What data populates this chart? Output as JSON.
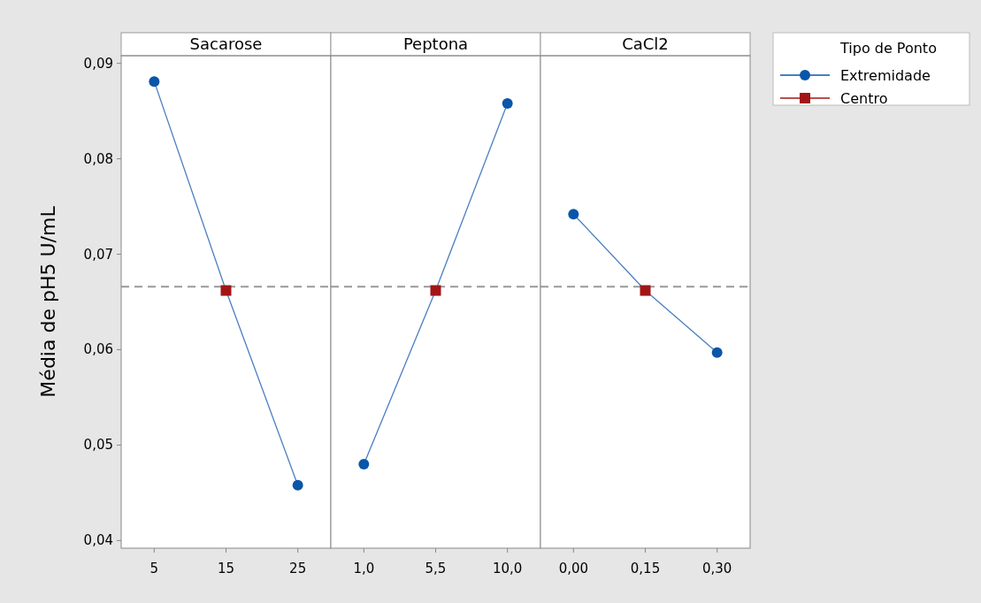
{
  "chart_data": [
    {
      "type": "line",
      "title": "Sacarose",
      "ylabel": "Média de pH5 U/mL",
      "categories": [
        "5",
        "15",
        "25"
      ],
      "ylim": [
        0.0392,
        0.0908
      ],
      "yticks": [
        {
          "value": 0.04,
          "label": "0,04"
        },
        {
          "value": 0.05,
          "label": "0,05"
        },
        {
          "value": 0.06,
          "label": "0,06"
        },
        {
          "value": 0.07,
          "label": "0,07"
        },
        {
          "value": 0.08,
          "label": "0,08"
        },
        {
          "value": 0.09,
          "label": "0,09"
        }
      ],
      "ref_lines": [
        {
          "axis": "y",
          "value": 0.0666,
          "color": "#999999",
          "line_style": "dashed"
        }
      ],
      "series": [
        {
          "type": "line",
          "color": "#4a7fc1",
          "marker": "none",
          "values": [
            0.0881,
            0.0662,
            0.0458
          ]
        },
        {
          "type": "scatter",
          "color": "#0a56a8",
          "marker": "circle",
          "values": [
            0.0881,
            null,
            0.0458
          ]
        },
        {
          "type": "scatter",
          "color": "#a31515",
          "marker": "square",
          "values": [
            null,
            0.0662,
            null
          ]
        }
      ]
    },
    {
      "type": "line",
      "title": "Peptona",
      "categories": [
        "1,0",
        "5,5",
        "10,0"
      ],
      "ylim": [
        0.0392,
        0.0908
      ],
      "tick_labels": "x",
      "ref_lines": [
        {
          "axis": "y",
          "value": 0.0666,
          "color": "#999999",
          "line_style": "dashed"
        }
      ],
      "series": [
        {
          "type": "line",
          "color": "#4a7fc1",
          "marker": "none",
          "values": [
            0.048,
            0.0662,
            0.0858
          ]
        },
        {
          "type": "scatter",
          "color": "#0a56a8",
          "marker": "circle",
          "values": [
            0.048,
            null,
            0.0858
          ]
        },
        {
          "type": "scatter",
          "color": "#a31515",
          "marker": "square",
          "values": [
            null,
            0.0662,
            null
          ]
        }
      ]
    },
    {
      "type": "line",
      "title": "CaCl2",
      "categories": [
        "0,00",
        "0,15",
        "0,30"
      ],
      "ylim": [
        0.0392,
        0.0908
      ],
      "tick_labels": "x",
      "legend": "right",
      "legend_title": "Tipo de Ponto",
      "ref_lines": [
        {
          "axis": "y",
          "value": 0.0666,
          "color": "#999999",
          "line_style": "dashed"
        }
      ],
      "series": [
        {
          "type": "line",
          "color": "#4a7fc1",
          "marker": "none",
          "values": [
            0.0742,
            0.0662,
            0.0597
          ]
        },
        {
          "type": "scatter",
          "name": "Extremidade",
          "color": "#0a56a8",
          "marker": "circle",
          "values": [
            0.0742,
            null,
            0.0597
          ]
        },
        {
          "type": "scatter",
          "name": "Centro",
          "color": "#a31515",
          "marker": "square",
          "values": [
            null,
            0.0662,
            null
          ]
        }
      ]
    }
  ]
}
